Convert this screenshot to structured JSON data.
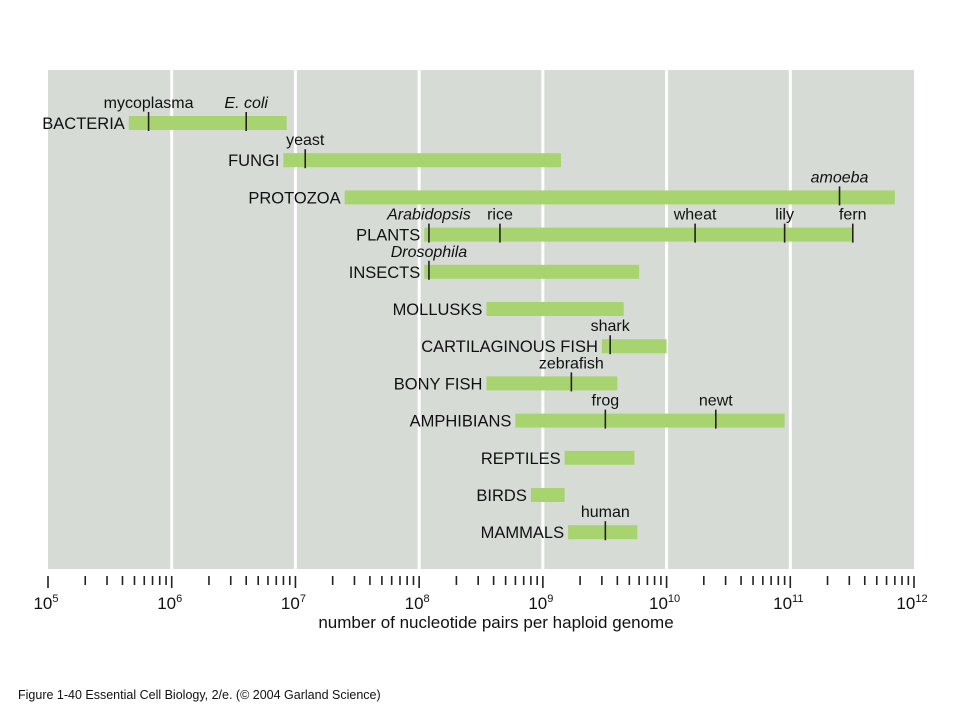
{
  "chart_data": {
    "type": "bar",
    "orientation": "horizontal-range",
    "scale": "log10",
    "xlim": [
      100000.0,
      1000000000000.0
    ],
    "xlabel": "number of nucleotide pairs per haploid genome",
    "tick_labels": [
      {
        "value": 100000.0,
        "base": "10",
        "exp": "5"
      },
      {
        "value": 1000000.0,
        "base": "10",
        "exp": "6"
      },
      {
        "value": 10000000.0,
        "base": "10",
        "exp": "7"
      },
      {
        "value": 100000000.0,
        "base": "10",
        "exp": "8"
      },
      {
        "value": 1000000000.0,
        "base": "10",
        "exp": "9"
      },
      {
        "value": 10000000000.0,
        "base": "10",
        "exp": "10"
      },
      {
        "value": 100000000000.0,
        "base": "10",
        "exp": "11"
      },
      {
        "value": 1000000000000.0,
        "base": "10",
        "exp": "12"
      }
    ],
    "grid": true,
    "colors": {
      "bar": "#a7d46f",
      "panel": "#d6dbd6",
      "gridline": "#ffffff"
    },
    "groups": [
      {
        "name": "BACTERIA",
        "range": [
          450000.0,
          8500000.0
        ],
        "markers": [
          {
            "label": "mycoplasma",
            "value": 650000.0,
            "italic": false
          },
          {
            "label": "E. coli",
            "value": 4000000.0,
            "italic": true
          }
        ]
      },
      {
        "name": "FUNGI",
        "range": [
          8000000.0,
          1400000000.0
        ],
        "markers": [
          {
            "label": "yeast",
            "value": 12000000.0,
            "italic": false
          }
        ]
      },
      {
        "name": "PROTOZOA",
        "range": [
          25000000.0,
          700000000000.0
        ],
        "markers": [
          {
            "label": "amoeba",
            "value": 250000000000.0,
            "italic": true
          }
        ]
      },
      {
        "name": "PLANTS",
        "range": [
          110000000.0,
          320000000000.0
        ],
        "markers": [
          {
            "label": "Arabidopsis",
            "value": 120000000.0,
            "italic": true
          },
          {
            "label": "rice",
            "value": 450000000.0,
            "italic": false
          },
          {
            "label": "wheat",
            "value": 17000000000.0,
            "italic": false
          },
          {
            "label": "lily",
            "value": 90000000000.0,
            "italic": false
          },
          {
            "label": "fern",
            "value": 320000000000.0,
            "italic": false
          }
        ]
      },
      {
        "name": "INSECTS",
        "range": [
          110000000.0,
          6000000000.0
        ],
        "markers": [
          {
            "label": "Drosophila",
            "value": 120000000.0,
            "italic": true
          }
        ]
      },
      {
        "name": "MOLLUSKS",
        "range": [
          350000000.0,
          4500000000.0
        ],
        "markers": []
      },
      {
        "name": "CARTILAGINOUS FISH",
        "range": [
          3000000000.0,
          10000000000.0
        ],
        "markers": [
          {
            "label": "shark",
            "value": 3500000000.0,
            "italic": false
          }
        ]
      },
      {
        "name": "BONY FISH",
        "range": [
          350000000.0,
          4000000000.0
        ],
        "markers": [
          {
            "label": "zebrafish",
            "value": 1700000000.0,
            "italic": false
          }
        ]
      },
      {
        "name": "AMPHIBIANS",
        "range": [
          600000000.0,
          90000000000.0
        ],
        "markers": [
          {
            "label": "frog",
            "value": 3200000000.0,
            "italic": false
          },
          {
            "label": "newt",
            "value": 25000000000.0,
            "italic": false
          }
        ]
      },
      {
        "name": "REPTILES",
        "range": [
          1500000000.0,
          5500000000.0
        ],
        "markers": []
      },
      {
        "name": "BIRDS",
        "range": [
          800000000.0,
          1500000000.0
        ],
        "markers": []
      },
      {
        "name": "MAMMALS",
        "range": [
          1600000000.0,
          5800000000.0
        ],
        "markers": [
          {
            "label": "human",
            "value": 3200000000.0,
            "italic": false
          }
        ]
      }
    ]
  },
  "caption": "Figure 1-40  Essential Cell Biology, 2/e. (© 2004 Garland Science)"
}
